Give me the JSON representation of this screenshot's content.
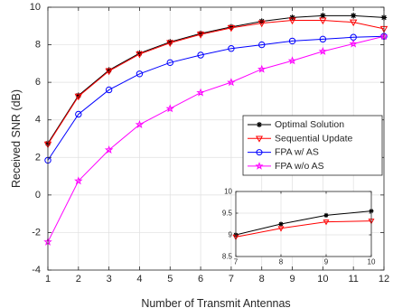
{
  "chart_data": [
    {
      "type": "line",
      "xlabel": "Number of Transmit Antennas",
      "ylabel": "Received SNR (dB)",
      "xlim": [
        1,
        12
      ],
      "ylim": [
        -4,
        10
      ],
      "xticks": [
        1,
        2,
        3,
        4,
        5,
        6,
        7,
        8,
        9,
        10,
        11,
        12
      ],
      "yticks": [
        -4,
        -2,
        0,
        2,
        4,
        6,
        8,
        10
      ],
      "grid": true,
      "legend_position": "center-right",
      "x": [
        1,
        2,
        3,
        4,
        5,
        6,
        7,
        8,
        9,
        10,
        11,
        12
      ],
      "series": [
        {
          "name": "Optimal Solution",
          "color": "#000000",
          "marker": "asterisk",
          "values": [
            2.75,
            5.3,
            6.65,
            7.55,
            8.15,
            8.6,
            8.95,
            9.25,
            9.45,
            9.55,
            9.55,
            9.45
          ]
        },
        {
          "name": "Sequential Update",
          "color": "#ff0000",
          "marker": "triangle-down",
          "values": [
            2.7,
            5.25,
            6.6,
            7.5,
            8.1,
            8.55,
            8.9,
            9.15,
            9.3,
            9.3,
            9.2,
            8.85
          ]
        },
        {
          "name": "FPA w/ AS",
          "color": "#0000ff",
          "marker": "circle",
          "values": [
            1.85,
            4.3,
            5.6,
            6.45,
            7.05,
            7.45,
            7.8,
            8.0,
            8.2,
            8.3,
            8.4,
            8.45
          ]
        },
        {
          "name": "FPA w/o AS",
          "color": "#ff00ff",
          "marker": "star",
          "values": [
            -2.5,
            0.75,
            2.4,
            3.75,
            4.6,
            5.45,
            6.0,
            6.7,
            7.15,
            7.65,
            8.05,
            8.45
          ]
        }
      ]
    },
    {
      "type": "line",
      "title": "",
      "xlim": [
        7,
        10
      ],
      "ylim": [
        8.5,
        10
      ],
      "xticks": [
        7,
        8,
        9,
        10
      ],
      "yticks": [
        8.5,
        9,
        9.5,
        10
      ],
      "ytick_labels": [
        "8.5",
        "9",
        "9.5",
        "10"
      ],
      "grid": true,
      "x": [
        7,
        8,
        9,
        10
      ],
      "series": [
        {
          "name": "Optimal Solution",
          "color": "#000000",
          "marker": "asterisk",
          "values": [
            9.0,
            9.25,
            9.45,
            9.55
          ]
        },
        {
          "name": "Sequential Update",
          "color": "#ff0000",
          "marker": "triangle-down",
          "values": [
            8.95,
            9.15,
            9.3,
            9.32
          ]
        }
      ]
    }
  ]
}
